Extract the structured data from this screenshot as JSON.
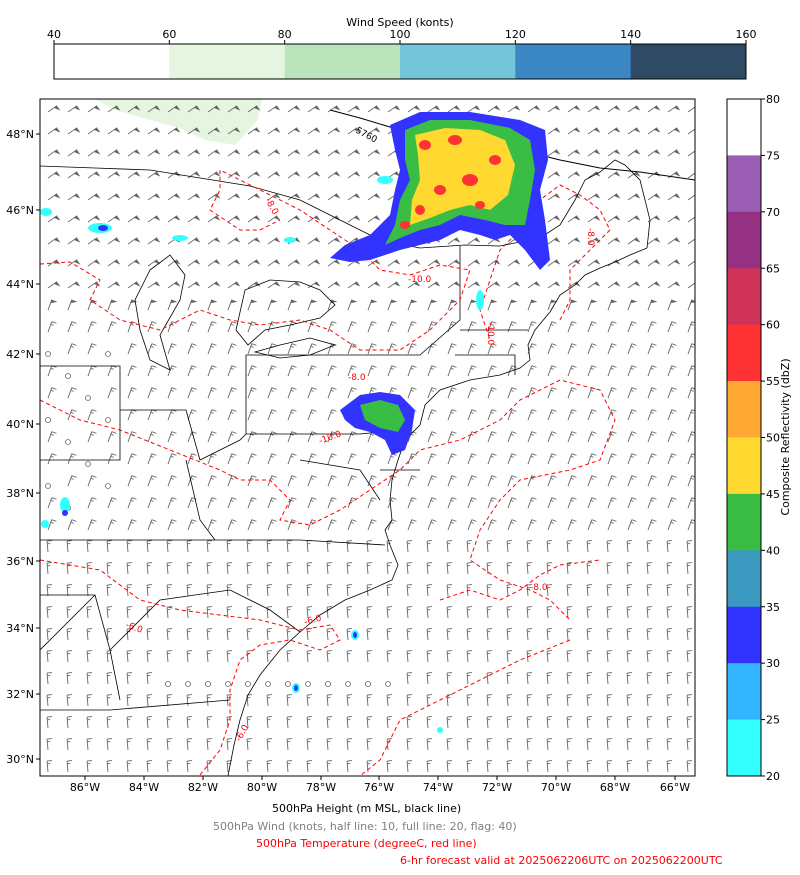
{
  "wind_colorbar": {
    "title": "Wind Speed (konts)",
    "ticks": [
      "40",
      "60",
      "80",
      "100",
      "120",
      "140",
      "160"
    ],
    "colors": [
      "#ffffff",
      "#e5f5e0",
      "#bae4bc",
      "#74c4da",
      "#3a87c3",
      "#2f4a64"
    ]
  },
  "reflectivity_colorbar": {
    "label": "Composite Reflectivity (dbZ)",
    "ticks": [
      "80",
      "75",
      "70",
      "65",
      "60",
      "55",
      "50",
      "45",
      "40",
      "35",
      "30",
      "25",
      "20"
    ],
    "colors": [
      "#ffffff",
      "#9a5fb4",
      "#963082",
      "#cf3358",
      "#ff3333",
      "#ffa833",
      "#ffd92f",
      "#3abd45",
      "#3b99bf",
      "#3333ff",
      "#33b5ff",
      "#33ffff"
    ]
  },
  "map": {
    "lat_labels": [
      "48°N",
      "46°N",
      "44°N",
      "42°N",
      "40°N",
      "38°N",
      "36°N",
      "34°N",
      "32°N",
      "30°N"
    ],
    "lon_labels": [
      "86°W",
      "84°W",
      "82°W",
      "80°W",
      "78°W",
      "76°W",
      "74°W",
      "72°W",
      "70°W",
      "68°W",
      "66°W"
    ],
    "height_contour_label": "5760",
    "temp_contour_labels": [
      "-8.0",
      "-10.0",
      "-10.0",
      "-8.0",
      "-8.0",
      "-10.0",
      "-6.0",
      "-6.0",
      "-8.0",
      "-6.0"
    ],
    "contour_colors": {
      "height": "#000000",
      "temperature": "#ff0000",
      "wind_barbs": "#666666"
    }
  },
  "captions": {
    "height": "500hPa Height (m MSL, black line)",
    "wind": "500hPa Wind (knots, half line: 10, full line: 20, flag: 40)",
    "temperature": "500hPa Temperature (degreeC, red line)",
    "valid": "6-hr forecast valid at 2025062206UTC on 2025062200UTC"
  }
}
